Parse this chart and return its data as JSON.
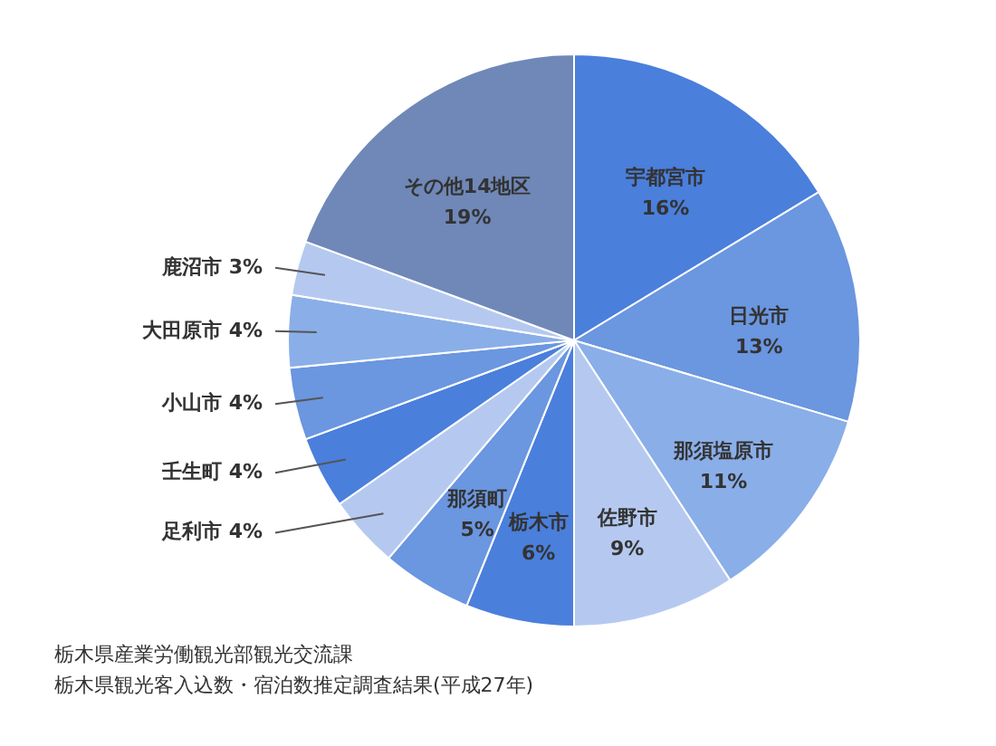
{
  "chart_data": {
    "type": "pie",
    "categories": [
      "宇都宮市",
      "日光市",
      "那須塩原市",
      "佐野市",
      "栃木市",
      "那須町",
      "足利市",
      "壬生町",
      "小山市",
      "大田原市",
      "鹿沼市",
      "その他14地区"
    ],
    "values": [
      16,
      13,
      11,
      9,
      6,
      5,
      4,
      4,
      4,
      4,
      3,
      19
    ],
    "value_labels": [
      "16%",
      "13%",
      "11%",
      "9%",
      "6%",
      "5%",
      "4%",
      "4%",
      "4%",
      "4%",
      "3%",
      "19%"
    ],
    "colors": [
      "#4a7fdc",
      "#6b96e0",
      "#8aaee8",
      "#b5c9f0",
      "#4a7fdc",
      "#6b96e0",
      "#b5c9f0",
      "#4a7fdc",
      "#6b96e0",
      "#8aaee8",
      "#b5c9f0",
      "#6f88b8"
    ],
    "annotations": [
      "栃木県産業労働観光部観光交流課",
      "栃木県観光客入込数・宿泊数推定調査結果(平成27年)"
    ]
  }
}
